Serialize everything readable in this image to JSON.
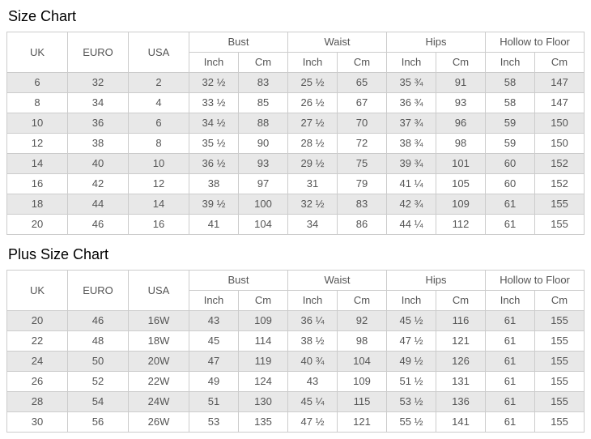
{
  "colors": {
    "stripe_bg": "#e8e8e8",
    "border": "#cccccc",
    "text": "#555555",
    "title": "#000000",
    "background": "#ffffff"
  },
  "units": {
    "inch": "Inch",
    "cm": "Cm"
  },
  "size_chart": {
    "title": "Size Chart",
    "columns": {
      "uk": "UK",
      "euro": "EURO",
      "usa": "USA"
    },
    "groups": [
      "Bust",
      "Waist",
      "Hips",
      "Hollow to Floor"
    ],
    "rows": [
      [
        "6",
        "32",
        "2",
        "32 ½",
        "83",
        "25 ½",
        "65",
        "35 ¾",
        "91",
        "58",
        "147"
      ],
      [
        "8",
        "34",
        "4",
        "33 ½",
        "85",
        "26 ½",
        "67",
        "36 ¾",
        "93",
        "58",
        "147"
      ],
      [
        "10",
        "36",
        "6",
        "34 ½",
        "88",
        "27 ½",
        "70",
        "37 ¾",
        "96",
        "59",
        "150"
      ],
      [
        "12",
        "38",
        "8",
        "35 ½",
        "90",
        "28 ½",
        "72",
        "38 ¾",
        "98",
        "59",
        "150"
      ],
      [
        "14",
        "40",
        "10",
        "36 ½",
        "93",
        "29 ½",
        "75",
        "39 ¾",
        "101",
        "60",
        "152"
      ],
      [
        "16",
        "42",
        "12",
        "38",
        "97",
        "31",
        "79",
        "41 ¼",
        "105",
        "60",
        "152"
      ],
      [
        "18",
        "44",
        "14",
        "39 ½",
        "100",
        "32 ½",
        "83",
        "42 ¾",
        "109",
        "61",
        "155"
      ],
      [
        "20",
        "46",
        "16",
        "41",
        "104",
        "34",
        "86",
        "44 ¼",
        "112",
        "61",
        "155"
      ]
    ]
  },
  "plus_size_chart": {
    "title": "Plus Size Chart",
    "columns": {
      "uk": "UK",
      "euro": "EURO",
      "usa": "USA"
    },
    "groups": [
      "Bust",
      "Waist",
      "Hips",
      "Hollow to Floor"
    ],
    "rows": [
      [
        "20",
        "46",
        "16W",
        "43",
        "109",
        "36 ¼",
        "92",
        "45 ½",
        "116",
        "61",
        "155"
      ],
      [
        "22",
        "48",
        "18W",
        "45",
        "114",
        "38 ½",
        "98",
        "47 ½",
        "121",
        "61",
        "155"
      ],
      [
        "24",
        "50",
        "20W",
        "47",
        "119",
        "40 ¾",
        "104",
        "49 ½",
        "126",
        "61",
        "155"
      ],
      [
        "26",
        "52",
        "22W",
        "49",
        "124",
        "43",
        "109",
        "51 ½",
        "131",
        "61",
        "155"
      ],
      [
        "28",
        "54",
        "24W",
        "51",
        "130",
        "45 ¼",
        "115",
        "53 ½",
        "136",
        "61",
        "155"
      ],
      [
        "30",
        "56",
        "26W",
        "53",
        "135",
        "47 ½",
        "121",
        "55 ½",
        "141",
        "61",
        "155"
      ]
    ]
  }
}
